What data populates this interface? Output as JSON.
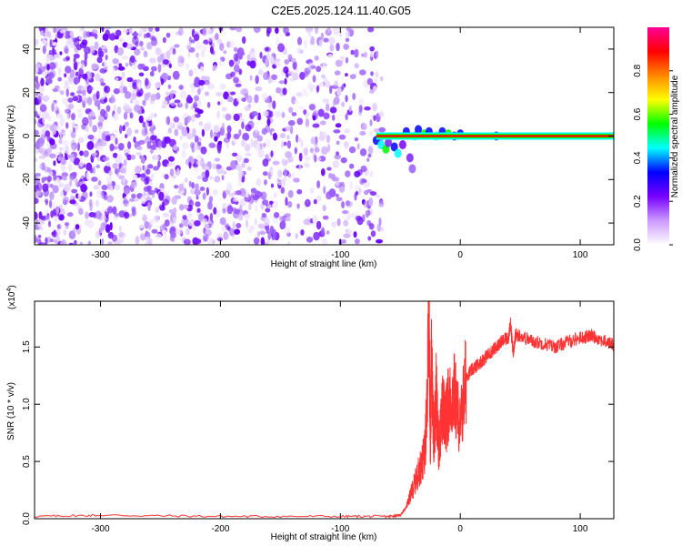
{
  "title": "C2E5.2025.124.11.40.G05",
  "chart_data": [
    {
      "type": "heatmap",
      "xlabel": "Height of straight line (km)",
      "ylabel": "Frequency (Hz)",
      "xlim": [
        -355,
        128
      ],
      "ylim": [
        -50,
        50
      ],
      "x_ticks": [
        -300,
        -200,
        -100,
        0,
        100
      ],
      "y_ticks": [
        -40,
        -20,
        0,
        20,
        40
      ],
      "colorbar": {
        "label": "Normalized spectral amplitude",
        "range": [
          0,
          1
        ],
        "ticks": [
          "0.0",
          "0.2",
          "0.4",
          "0.6",
          "0.8"
        ],
        "tick_values": [
          0.0,
          0.2,
          0.4,
          0.6,
          0.8
        ],
        "colors": [
          "#ffffff",
          "#cc99ff",
          "#7700ff",
          "#0000ff",
          "#00ffff",
          "#00ff00",
          "#ffff00",
          "#ff8800",
          "#ff0000",
          "#ff0099"
        ]
      },
      "noise_region_x": [
        -355,
        -65
      ],
      "signal_frequency_hz": 0,
      "signal_start_x": -70
    },
    {
      "type": "line",
      "xlabel": "Height of straight line (km)",
      "ylabel": "SNR (10 * v/v)",
      "y_multiplier": "(x10",
      "y_multiplier_exp": "4",
      "y_multiplier_close": ")",
      "xlim": [
        -355,
        128
      ],
      "ylim": [
        0,
        1.9
      ],
      "x_ticks": [
        -300,
        -200,
        -100,
        0,
        100
      ],
      "y_ticks": [
        "0.0",
        "0.5",
        "1.0",
        "1.5"
      ],
      "y_tick_values": [
        0.0,
        0.5,
        1.0,
        1.5
      ],
      "color": "#ff3333",
      "x": [
        -355,
        -300,
        -200,
        -100,
        -60,
        -50,
        -45,
        -40,
        -35,
        -30,
        -28,
        -26,
        -25,
        -24,
        -22,
        -20,
        -18,
        -15,
        -12,
        -10,
        -5,
        0,
        5,
        10,
        15,
        20,
        25,
        30,
        35,
        40,
        42,
        44,
        46,
        50,
        60,
        70,
        80,
        90,
        100,
        110,
        120,
        128
      ],
      "y": [
        0.02,
        0.03,
        0.02,
        0.02,
        0.02,
        0.03,
        0.1,
        0.25,
        0.4,
        0.55,
        0.9,
        1.85,
        0.6,
        1.4,
        0.7,
        1.1,
        0.6,
        0.95,
        0.85,
        1.0,
        1.1,
        0.8,
        1.25,
        1.3,
        1.35,
        1.4,
        1.45,
        1.5,
        1.55,
        1.58,
        1.7,
        1.45,
        1.6,
        1.6,
        1.55,
        1.53,
        1.5,
        1.55,
        1.58,
        1.6,
        1.55,
        1.52
      ]
    }
  ]
}
